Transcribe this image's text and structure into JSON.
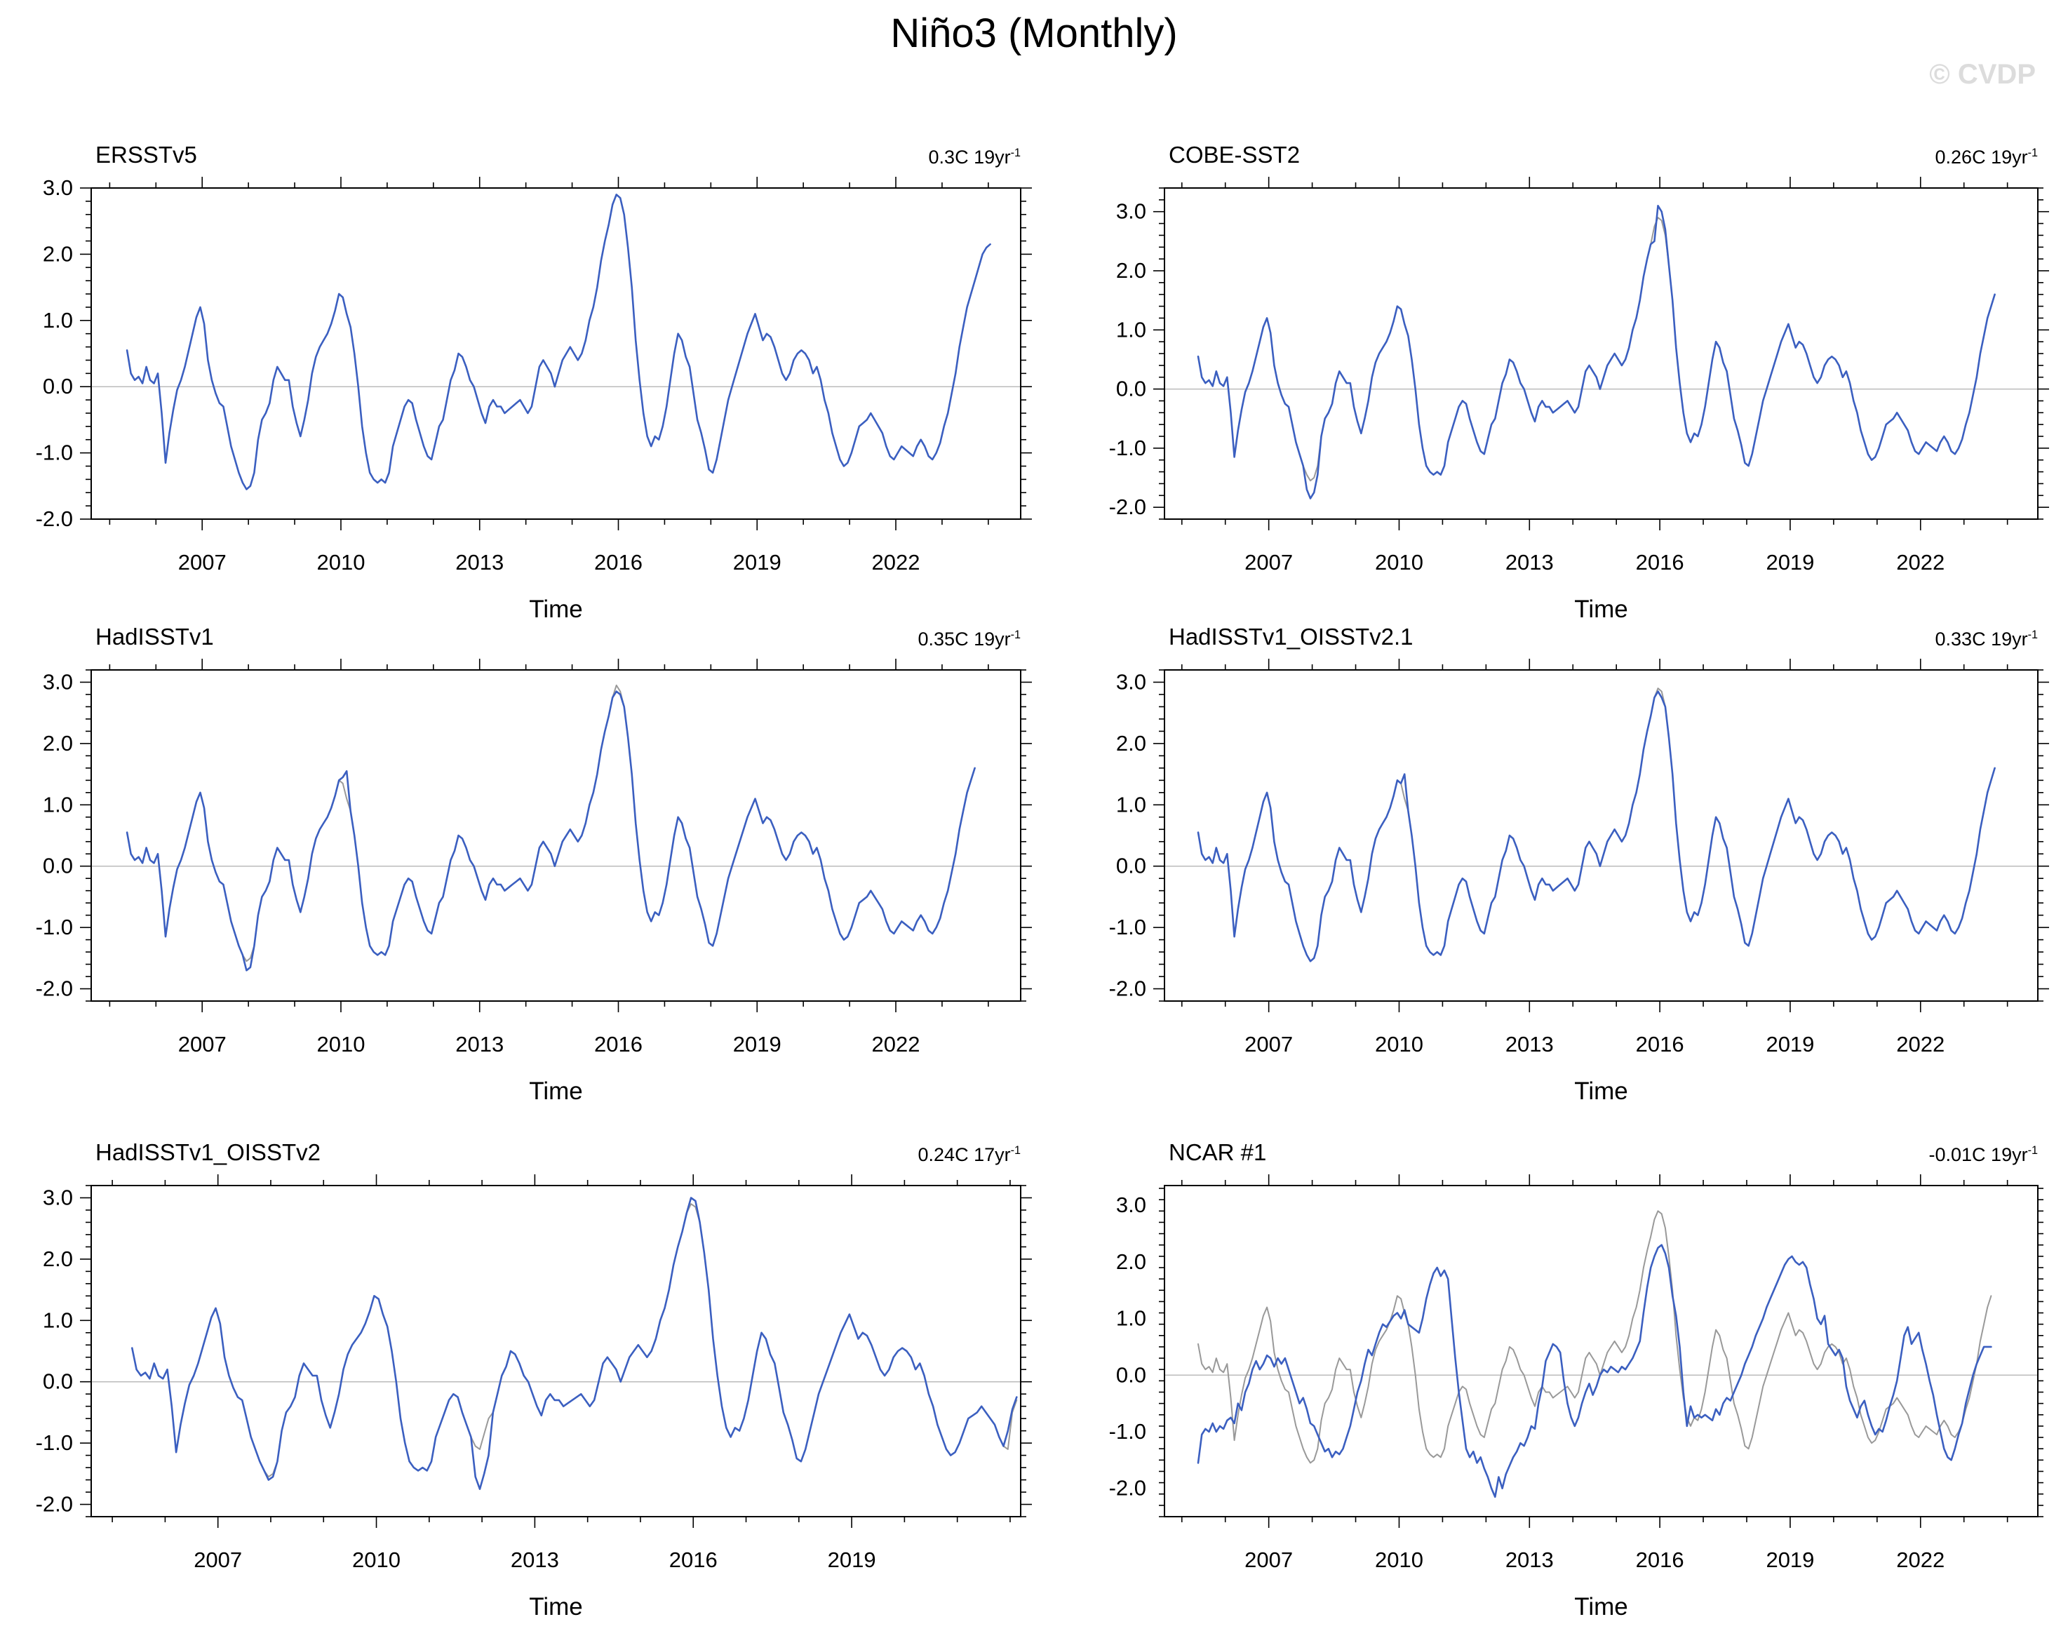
{
  "page_title": "Niño3 (Monthly)",
  "watermark": "© CVDP",
  "chart_data": {
    "type": "line",
    "title": "Niño3 (Monthly)",
    "xlabel": "Time",
    "grid": false,
    "legend": "none",
    "colors": {
      "model_line": "#3b5fc0",
      "reference_line": "#999999",
      "zero_line": "#bbbbbb",
      "axis": "#000000",
      "watermark": "#dcdcdc"
    },
    "x_start_year": 2005.375,
    "x_step_years": 0.083333,
    "reference_series_name": "ERSSTv5",
    "reference_values": [
      0.55,
      0.2,
      0.1,
      0.15,
      0.05,
      0.3,
      0.1,
      0.05,
      0.2,
      -0.4,
      -1.15,
      -0.7,
      -0.35,
      -0.05,
      0.1,
      0.3,
      0.55,
      0.8,
      1.05,
      1.2,
      0.95,
      0.4,
      0.1,
      -0.1,
      -0.25,
      -0.3,
      -0.6,
      -0.9,
      -1.1,
      -1.3,
      -1.45,
      -1.55,
      -1.5,
      -1.3,
      -0.8,
      -0.5,
      -0.4,
      -0.25,
      0.1,
      0.3,
      0.2,
      0.1,
      0.1,
      -0.3,
      -0.55,
      -0.75,
      -0.5,
      -0.2,
      0.2,
      0.45,
      0.6,
      0.7,
      0.8,
      0.95,
      1.15,
      1.4,
      1.35,
      1.1,
      0.9,
      0.5,
      0.0,
      -0.6,
      -1.0,
      -1.3,
      -1.4,
      -1.45,
      -1.4,
      -1.45,
      -1.3,
      -0.9,
      -0.7,
      -0.5,
      -0.3,
      -0.2,
      -0.25,
      -0.5,
      -0.7,
      -0.9,
      -1.05,
      -1.1,
      -0.85,
      -0.6,
      -0.5,
      -0.2,
      0.1,
      0.25,
      0.5,
      0.45,
      0.3,
      0.1,
      0.0,
      -0.2,
      -0.4,
      -0.55,
      -0.3,
      -0.2,
      -0.3,
      -0.3,
      -0.4,
      -0.35,
      -0.3,
      -0.25,
      -0.2,
      -0.3,
      -0.4,
      -0.3,
      0.0,
      0.3,
      0.4,
      0.3,
      0.2,
      0.0,
      0.2,
      0.4,
      0.5,
      0.6,
      0.5,
      0.4,
      0.5,
      0.7,
      1.0,
      1.2,
      1.5,
      1.9,
      2.2,
      2.45,
      2.75,
      2.9,
      2.85,
      2.6,
      2.1,
      1.5,
      0.7,
      0.1,
      -0.4,
      -0.75,
      -0.9,
      -0.75,
      -0.8,
      -0.6,
      -0.3,
      0.1,
      0.5,
      0.8,
      0.7,
      0.45,
      0.3,
      -0.1,
      -0.5,
      -0.7,
      -0.95,
      -1.25,
      -1.3,
      -1.1,
      -0.8,
      -0.5,
      -0.2,
      0.0,
      0.2,
      0.4,
      0.6,
      0.8,
      0.95,
      1.1,
      0.9,
      0.7,
      0.8,
      0.75,
      0.6,
      0.4,
      0.2,
      0.1,
      0.2,
      0.4,
      0.5,
      0.55,
      0.5,
      0.4,
      0.2,
      0.3,
      0.1,
      -0.2,
      -0.4,
      -0.7,
      -0.9,
      -1.1,
      -1.2,
      -1.15,
      -1.0,
      -0.8,
      -0.6,
      -0.55,
      -0.5,
      -0.4,
      -0.5,
      -0.6,
      -0.7,
      -0.9,
      -1.05,
      -1.1,
      -1.0,
      -0.9,
      -0.95,
      -1.0,
      -1.05,
      -0.9,
      -0.8,
      -0.9,
      -1.05,
      -1.1,
      -1.0,
      -0.85,
      -0.6,
      -0.4,
      -0.1,
      0.2,
      0.6,
      0.9,
      1.2,
      1.4,
      1.6,
      1.8,
      2.0,
      2.1,
      2.15
    ],
    "panels": [
      {
        "title": "ERSSTv5",
        "trend": "0.3C 19yr",
        "trend_sup": "-1",
        "col": 0,
        "row": 0,
        "xlim": [
          2004.6,
          2024.7
        ],
        "ylim": [
          -2.0,
          3.0
        ],
        "xticks": [
          2007,
          2010,
          2013,
          2016,
          2019,
          2022
        ],
        "yticks": [
          3.0,
          2.0,
          1.0,
          0.0,
          -1.0,
          -2.0
        ],
        "xminor_step": 1,
        "yminor_step": 0.2,
        "series": [
          {
            "role": "model",
            "base": "reference",
            "end_index": 225,
            "overrides": {}
          }
        ]
      },
      {
        "title": "COBE-SST2",
        "trend": "0.26C 19yr",
        "trend_sup": "-1",
        "col": 1,
        "row": 0,
        "xlim": [
          2004.6,
          2024.7
        ],
        "ylim": [
          -2.2,
          3.4
        ],
        "xticks": [
          2007,
          2010,
          2013,
          2016,
          2019,
          2022
        ],
        "yticks": [
          3.0,
          2.0,
          1.0,
          0.0,
          -1.0,
          -2.0
        ],
        "xminor_step": 1,
        "yminor_step": 0.2,
        "series": [
          {
            "role": "reference",
            "base": "reference",
            "end_index": 221,
            "overrides": {}
          },
          {
            "role": "model",
            "base": "reference",
            "end_index": 221,
            "overrides": {
              "30": -1.7,
              "31": -1.85,
              "32": -1.75,
              "33": -1.45,
              "126": 2.5,
              "127": 3.1,
              "128": 3.0,
              "129": 2.7
            }
          }
        ]
      },
      {
        "title": "HadISSTv1",
        "trend": "0.35C 19yr",
        "trend_sup": "-1",
        "col": 0,
        "row": 1,
        "xlim": [
          2004.6,
          2024.7
        ],
        "ylim": [
          -2.2,
          3.2
        ],
        "xticks": [
          2007,
          2010,
          2013,
          2016,
          2019,
          2022
        ],
        "yticks": [
          3.0,
          2.0,
          1.0,
          0.0,
          -1.0,
          -2.0
        ],
        "xminor_step": 1,
        "yminor_step": 0.2,
        "series": [
          {
            "role": "reference",
            "base": "reference",
            "end_index": 221,
            "overrides": {
              "127": 2.95
            }
          },
          {
            "role": "model",
            "base": "reference",
            "end_index": 221,
            "overrides": {
              "31": -1.7,
              "32": -1.65,
              "56": 1.45,
              "57": 1.55,
              "127": 2.85,
              "128": 2.8
            }
          }
        ]
      },
      {
        "title": "HadISSTv1_OISSTv2.1",
        "trend": "0.33C 19yr",
        "trend_sup": "-1",
        "col": 1,
        "row": 1,
        "xlim": [
          2004.6,
          2024.7
        ],
        "ylim": [
          -2.2,
          3.2
        ],
        "xticks": [
          2007,
          2010,
          2013,
          2016,
          2019,
          2022
        ],
        "yticks": [
          3.0,
          2.0,
          1.0,
          0.0,
          -1.0,
          -2.0
        ],
        "xminor_step": 1,
        "yminor_step": 0.2,
        "series": [
          {
            "role": "reference",
            "base": "reference",
            "end_index": 221,
            "overrides": {
              "127": 2.9
            }
          },
          {
            "role": "model",
            "base": "reference",
            "end_index": 221,
            "overrides": {
              "57": 1.5,
              "127": 2.85,
              "128": 2.75
            }
          }
        ]
      },
      {
        "title": "HadISSTv1_OISSTv2",
        "trend": "0.24C 17yr",
        "trend_sup": "-1",
        "col": 0,
        "row": 2,
        "xlim": [
          2004.6,
          2022.2
        ],
        "ylim": [
          -2.2,
          3.2
        ],
        "xticks": [
          2007,
          2010,
          2013,
          2016,
          2019
        ],
        "yticks": [
          3.0,
          2.0,
          1.0,
          0.0,
          -1.0,
          -2.0
        ],
        "xminor_step": 1,
        "yminor_step": 0.2,
        "series": [
          {
            "role": "reference",
            "base": "reference",
            "end_index": 202,
            "overrides": {
              "127": 2.9,
              "200": -0.5,
              "201": -0.3
            }
          },
          {
            "role": "model",
            "base": "reference",
            "end_index": 202,
            "overrides": {
              "31": -1.6,
              "32": -1.55,
              "78": -1.55,
              "79": -1.75,
              "80": -1.5,
              "81": -1.2,
              "127": 3.0,
              "128": 2.95,
              "199": -0.8,
              "200": -0.45,
              "201": -0.25
            }
          }
        ]
      },
      {
        "title": "NCAR #1",
        "trend": "-0.01C 19yr",
        "trend_sup": "-1",
        "col": 1,
        "row": 2,
        "xlim": [
          2004.6,
          2024.7
        ],
        "ylim": [
          -2.5,
          3.35
        ],
        "xticks": [
          2007,
          2010,
          2013,
          2016,
          2019,
          2022
        ],
        "yticks": [
          3.0,
          2.0,
          1.0,
          0.0,
          -1.0,
          -2.0
        ],
        "xminor_step": 1,
        "yminor_step": 0.2,
        "series": [
          {
            "role": "reference",
            "base": "reference",
            "end_index": 220,
            "overrides": {}
          },
          {
            "role": "model",
            "base": "custom",
            "end_index": 220,
            "overrides": {},
            "values": [
              -1.55,
              -1.05,
              -0.95,
              -1.0,
              -0.85,
              -1.0,
              -0.9,
              -0.95,
              -0.8,
              -0.75,
              -0.85,
              -0.5,
              -0.62,
              -0.3,
              -0.15,
              0.1,
              0.25,
              0.1,
              0.2,
              0.35,
              0.3,
              0.15,
              0.3,
              0.2,
              0.3,
              0.1,
              -0.1,
              -0.3,
              -0.5,
              -0.4,
              -0.6,
              -0.85,
              -0.9,
              -1.05,
              -1.2,
              -1.35,
              -1.3,
              -1.45,
              -1.35,
              -1.4,
              -1.3,
              -1.1,
              -0.9,
              -0.6,
              -0.3,
              -0.1,
              0.2,
              0.45,
              0.35,
              0.55,
              0.75,
              0.9,
              0.85,
              0.95,
              1.05,
              1.1,
              1.0,
              1.15,
              0.9,
              0.85,
              0.8,
              0.75,
              1.0,
              1.35,
              1.6,
              1.8,
              1.9,
              1.75,
              1.85,
              1.7,
              1.0,
              0.3,
              -0.3,
              -0.8,
              -1.3,
              -1.45,
              -1.35,
              -1.55,
              -1.45,
              -1.65,
              -1.8,
              -2.0,
              -2.15,
              -1.8,
              -2.0,
              -1.75,
              -1.6,
              -1.45,
              -1.35,
              -1.2,
              -1.25,
              -1.1,
              -0.9,
              -0.95,
              -0.5,
              -0.2,
              0.25,
              0.4,
              0.55,
              0.5,
              0.4,
              -0.1,
              -0.5,
              -0.75,
              -0.9,
              -0.75,
              -0.5,
              -0.3,
              -0.15,
              -0.35,
              -0.2,
              0.0,
              0.1,
              0.05,
              0.15,
              0.1,
              0.05,
              0.15,
              0.1,
              0.2,
              0.3,
              0.45,
              0.6,
              1.1,
              1.55,
              1.9,
              2.1,
              2.25,
              2.3,
              2.15,
              1.9,
              1.4,
              1.05,
              0.5,
              -0.3,
              -0.9,
              -0.55,
              -0.75,
              -0.7,
              -0.75,
              -0.7,
              -0.75,
              -0.8,
              -0.6,
              -0.7,
              -0.5,
              -0.4,
              -0.45,
              -0.3,
              -0.15,
              0.0,
              0.2,
              0.35,
              0.5,
              0.7,
              0.85,
              1.0,
              1.2,
              1.35,
              1.5,
              1.65,
              1.8,
              1.95,
              2.05,
              2.1,
              2.0,
              1.95,
              2.0,
              1.9,
              1.6,
              1.35,
              1.0,
              0.9,
              1.05,
              0.55,
              0.45,
              0.35,
              0.45,
              0.3,
              -0.2,
              -0.45,
              -0.6,
              -0.75,
              -0.55,
              -0.45,
              -0.7,
              -0.9,
              -1.05,
              -0.95,
              -1.0,
              -0.8,
              -0.55,
              -0.35,
              -0.1,
              0.3,
              0.7,
              0.85,
              0.55,
              0.65,
              0.75,
              0.45,
              0.2,
              -0.1,
              -0.35,
              -0.7,
              -1.0,
              -1.3,
              -1.45,
              -1.5,
              -1.3,
              -1.05,
              -0.85,
              -0.5,
              -0.25,
              0.0,
              0.2,
              0.35,
              0.5,
              0.5,
              0.5
            ]
          }
        ]
      }
    ]
  }
}
